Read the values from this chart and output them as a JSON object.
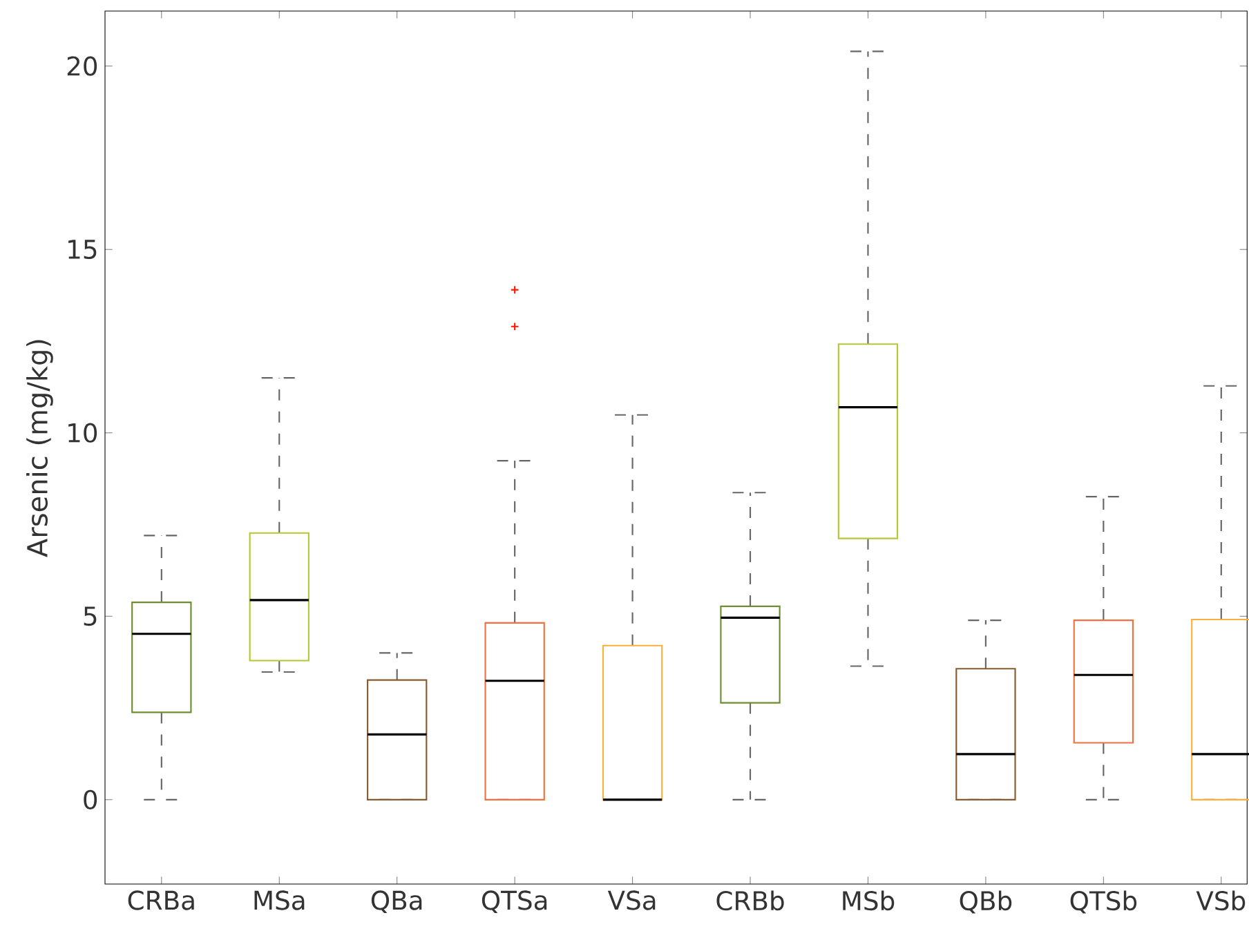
{
  "chart_data": {
    "type": "box",
    "ylabel": "Arsenic (mg/kg)",
    "categories": [
      "CRBa",
      "MSa",
      "QBa",
      "QTSa",
      "VSa",
      "CRBb",
      "MSb",
      "QBb",
      "QTSb",
      "VSb"
    ],
    "colors": [
      "#6b8e2e",
      "#b5c832",
      "#8b5a2b",
      "#f07040",
      "#fbb03b",
      "#6b8e2e",
      "#b5c832",
      "#8b5a2b",
      "#f07040",
      "#fbb03b"
    ],
    "boxes": [
      {
        "low": 0,
        "q1": 2.38,
        "median": 4.52,
        "q3": 5.38,
        "high": 7.2
      },
      {
        "low": 3.48,
        "q1": 3.79,
        "median": 5.44,
        "q3": 7.27,
        "high": 11.5
      },
      {
        "low": 0,
        "q1": 0,
        "median": 1.78,
        "q3": 3.26,
        "high": 4.0
      },
      {
        "low": 0,
        "q1": 0,
        "median": 3.24,
        "q3": 4.82,
        "high": 9.24,
        "outliers": [
          13.9,
          12.9
        ]
      },
      {
        "low": 0,
        "q1": 0,
        "median": 0,
        "q3": 4.2,
        "high": 10.49
      },
      {
        "low": 0,
        "q1": 2.64,
        "median": 4.96,
        "q3": 5.27,
        "high": 8.37
      },
      {
        "low": 3.64,
        "q1": 7.12,
        "median": 10.7,
        "q3": 12.42,
        "high": 20.4
      },
      {
        "low": 0,
        "q1": 0,
        "median": 1.24,
        "q3": 3.57,
        "high": 4.89
      },
      {
        "low": 0,
        "q1": 1.55,
        "median": 3.4,
        "q3": 4.89,
        "high": 8.26
      },
      {
        "low": 0,
        "q1": 0,
        "median": 1.24,
        "q3": 4.91,
        "high": 11.28
      }
    ],
    "marker": "cross",
    "ylim": [
      -2.3,
      21.5
    ],
    "yticks": [
      0,
      5,
      10,
      15,
      20
    ]
  }
}
